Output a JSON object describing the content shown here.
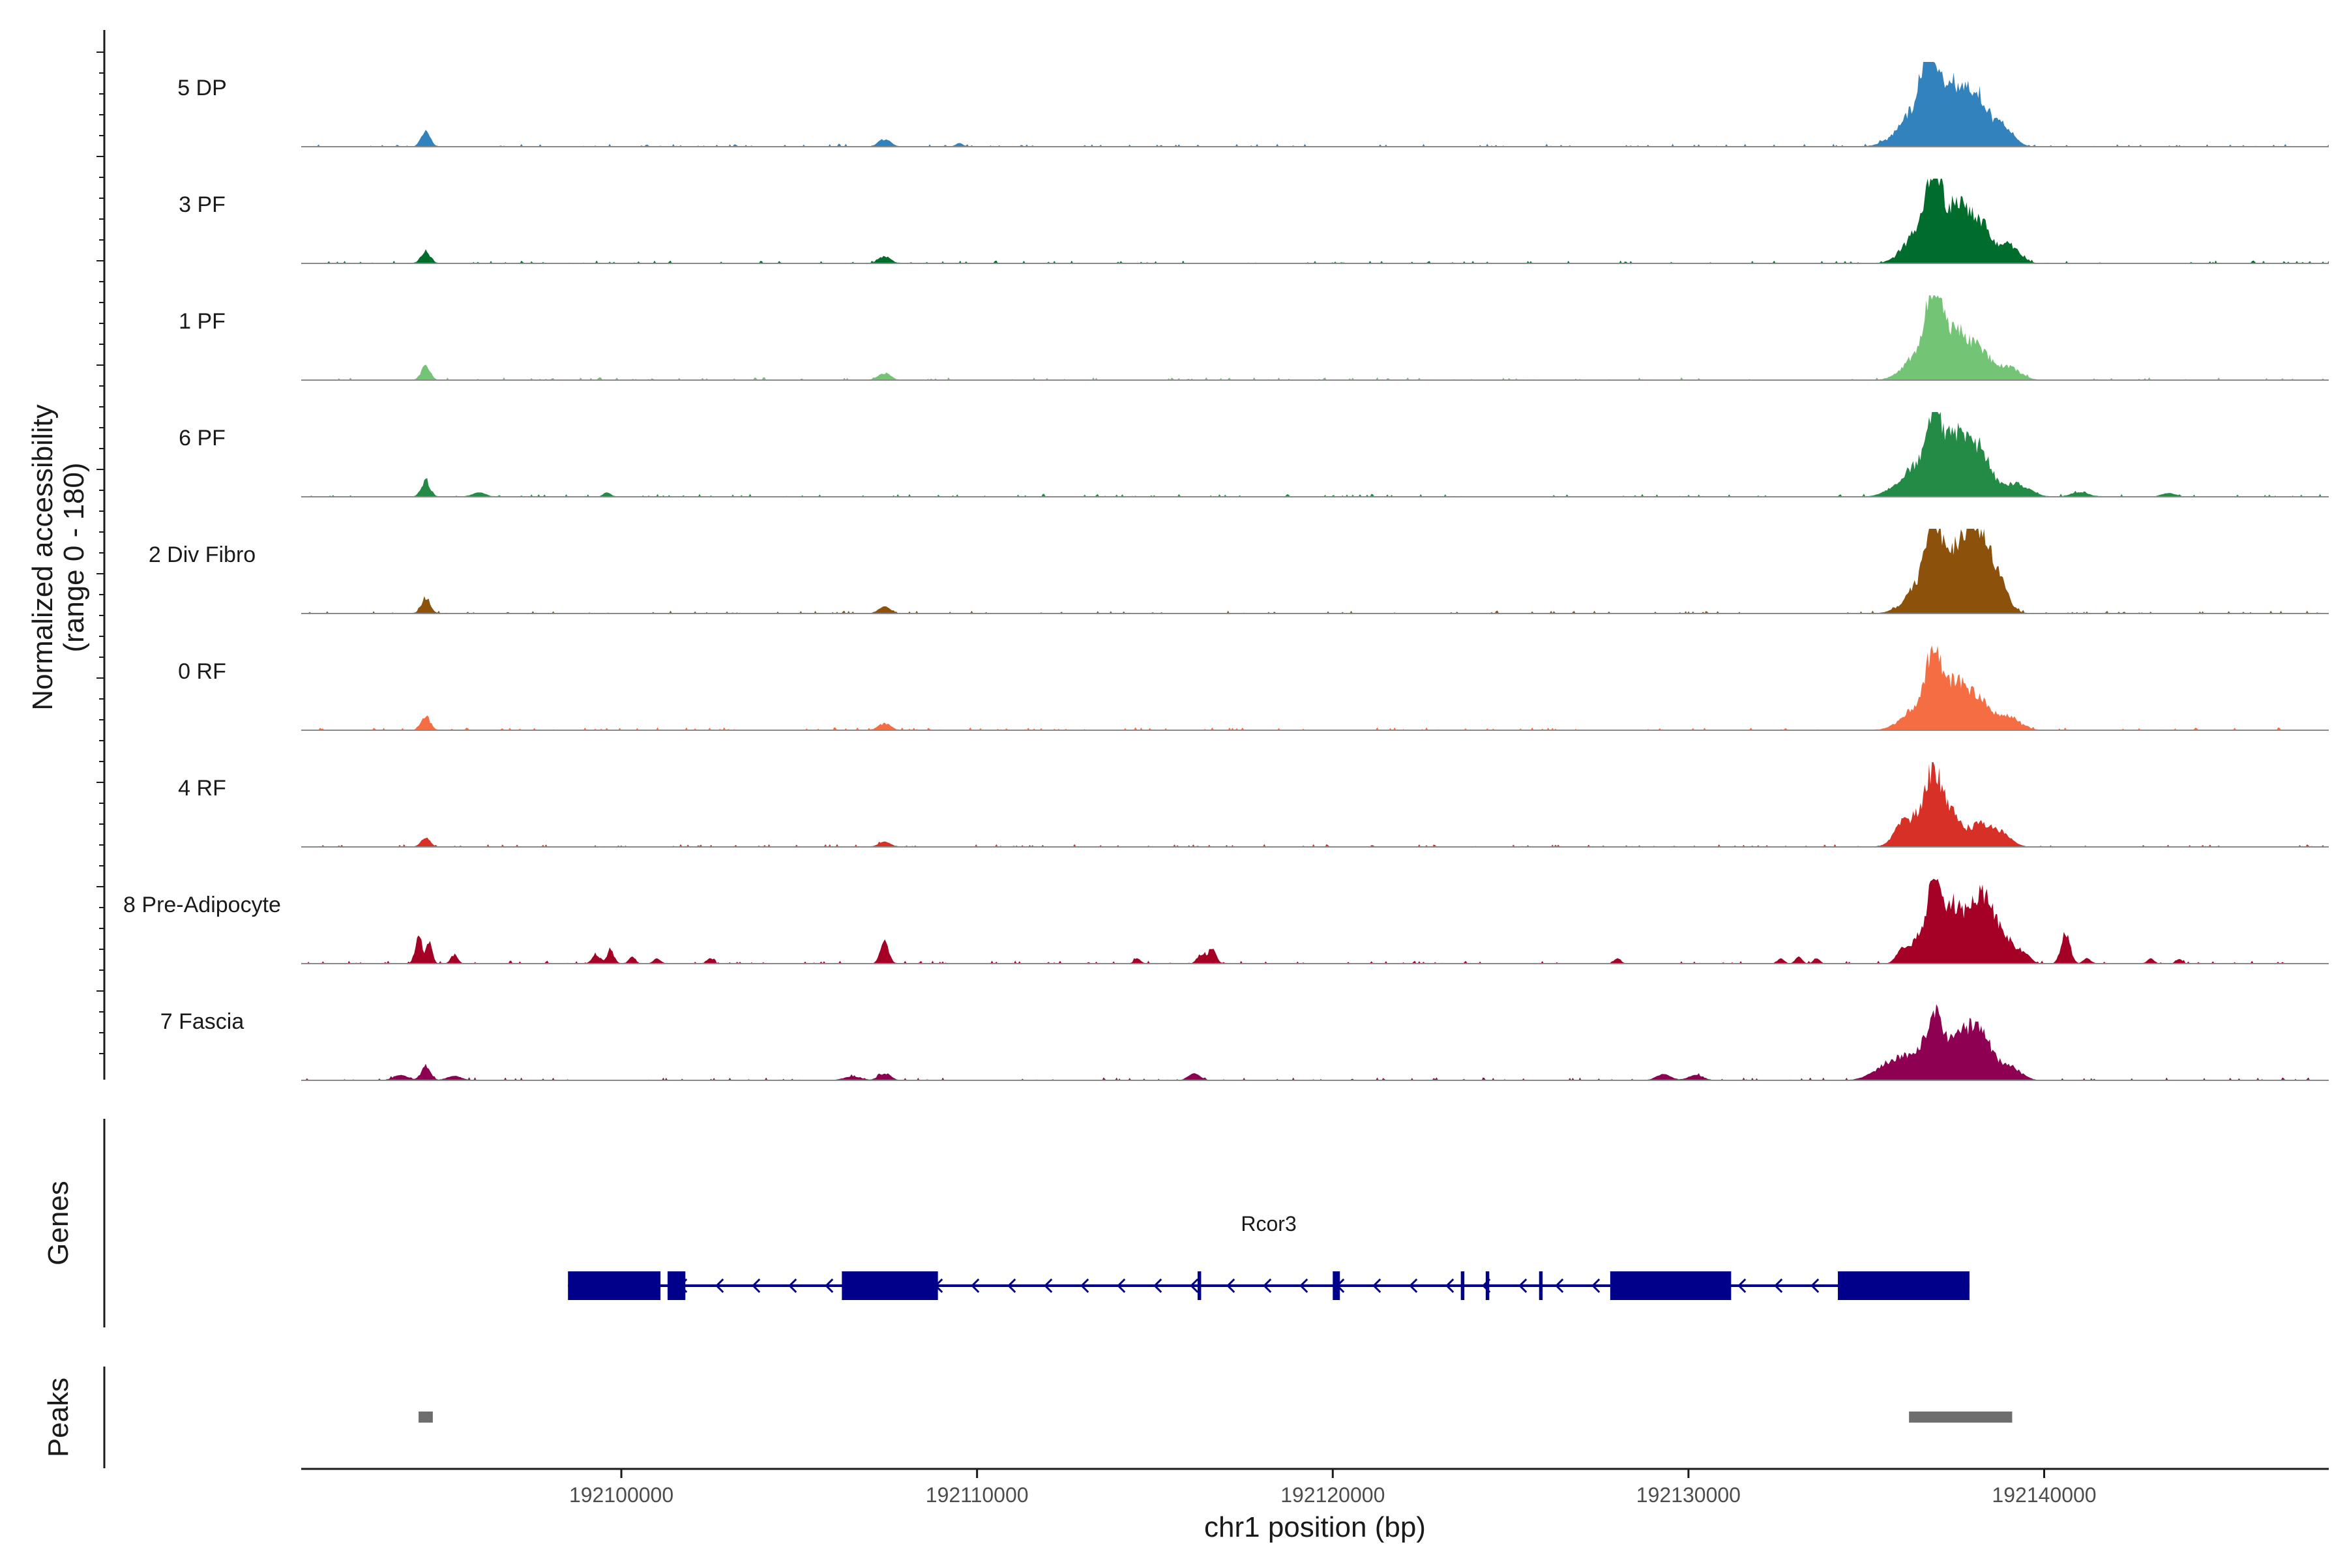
{
  "chart_data": {
    "type": "area",
    "title": "",
    "xlabel": "chr1 position (bp)",
    "ylabel": "Normalized accessibility",
    "ylabel_range": "(range 0 - 180)",
    "xlim": [
      192091000,
      192148000
    ],
    "ylim": [
      0,
      180
    ],
    "x_ticks": [
      192100000,
      192110000,
      192120000,
      192130000,
      192140000
    ],
    "x_tick_labels": [
      "192100000",
      "192110000",
      "192120000",
      "192130000",
      "192140000"
    ],
    "grid": false,
    "legend": "none",
    "series": [
      {
        "name": "5 DP",
        "color": "#3182BD",
        "peaks": [
          [
            192094500,
            0.22,
            120
          ],
          [
            192107400,
            0.1,
            160
          ],
          [
            192109500,
            0.04,
            100
          ],
          [
            192136500,
            0.55,
            500
          ],
          [
            192136800,
            0.92,
            220
          ],
          [
            192137300,
            0.55,
            260
          ],
          [
            192138200,
            0.62,
            300
          ],
          [
            192137700,
            0.48,
            260
          ],
          [
            192138900,
            0.25,
            250
          ]
        ]
      },
      {
        "name": "3 PF",
        "color": "#006D2C",
        "peaks": [
          [
            192094500,
            0.18,
            120
          ],
          [
            192107400,
            0.09,
            160
          ],
          [
            192136600,
            0.55,
            420
          ],
          [
            192136900,
            0.88,
            200
          ],
          [
            192137400,
            0.45,
            260
          ],
          [
            192138200,
            0.55,
            300
          ],
          [
            192137700,
            0.4,
            260
          ],
          [
            192139000,
            0.25,
            280
          ]
        ]
      },
      {
        "name": "1 PF",
        "color": "#74C476",
        "peaks": [
          [
            192094500,
            0.2,
            120
          ],
          [
            192107400,
            0.09,
            160
          ],
          [
            192136600,
            0.45,
            420
          ],
          [
            192136900,
            0.95,
            200
          ],
          [
            192137400,
            0.45,
            260
          ],
          [
            192138200,
            0.4,
            300
          ],
          [
            192137700,
            0.32,
            260
          ],
          [
            192139000,
            0.18,
            300
          ]
        ]
      },
      {
        "name": "6 PF",
        "color": "#238B45",
        "peaks": [
          [
            192094500,
            0.22,
            120
          ],
          [
            192096000,
            0.05,
            180
          ],
          [
            192099600,
            0.05,
            100
          ],
          [
            192136500,
            0.45,
            500
          ],
          [
            192136900,
            0.9,
            200
          ],
          [
            192137400,
            0.5,
            260
          ],
          [
            192138200,
            0.62,
            300
          ],
          [
            192137700,
            0.4,
            260
          ],
          [
            192139200,
            0.18,
            350
          ],
          [
            192141000,
            0.05,
            250
          ],
          [
            192143500,
            0.04,
            200
          ]
        ]
      },
      {
        "name": "2 Div Fibro",
        "color": "#8C510A",
        "peaks": [
          [
            192094500,
            0.22,
            120
          ],
          [
            192107400,
            0.08,
            160
          ],
          [
            192136600,
            0.45,
            420
          ],
          [
            192136900,
            0.9,
            200
          ],
          [
            192137400,
            0.55,
            280
          ],
          [
            192138200,
            0.88,
            280
          ],
          [
            192137800,
            0.6,
            260
          ],
          [
            192138700,
            0.45,
            260
          ]
        ]
      },
      {
        "name": "0 RF",
        "color": "#F46D43",
        "peaks": [
          [
            192094500,
            0.2,
            120
          ],
          [
            192107400,
            0.09,
            160
          ],
          [
            192136500,
            0.35,
            420
          ],
          [
            192136900,
            0.88,
            200
          ],
          [
            192137400,
            0.45,
            260
          ],
          [
            192138200,
            0.4,
            300
          ],
          [
            192137700,
            0.32,
            260
          ],
          [
            192139000,
            0.18,
            300
          ]
        ]
      },
      {
        "name": "4 RF",
        "color": "#D73027",
        "peaks": [
          [
            192094500,
            0.12,
            120
          ],
          [
            192107400,
            0.06,
            160
          ],
          [
            192135900,
            0.15,
            150
          ],
          [
            192136500,
            0.45,
            420
          ],
          [
            192136900,
            0.72,
            200
          ],
          [
            192137400,
            0.45,
            260
          ],
          [
            192138200,
            0.32,
            300
          ],
          [
            192138800,
            0.18,
            260
          ]
        ]
      },
      {
        "name": "8 Pre-Adipocyte",
        "color": "#A50026",
        "peaks": [
          [
            192094300,
            0.42,
            90
          ],
          [
            192094600,
            0.3,
            80
          ],
          [
            192095300,
            0.12,
            90
          ],
          [
            192099300,
            0.12,
            110
          ],
          [
            192099700,
            0.2,
            90
          ],
          [
            192100300,
            0.08,
            90
          ],
          [
            192101000,
            0.06,
            90
          ],
          [
            192102500,
            0.06,
            90
          ],
          [
            192107400,
            0.32,
            110
          ],
          [
            192114500,
            0.06,
            90
          ],
          [
            192116300,
            0.12,
            110
          ],
          [
            192116600,
            0.2,
            110
          ],
          [
            192128000,
            0.06,
            90
          ],
          [
            192132600,
            0.06,
            90
          ],
          [
            192133100,
            0.08,
            90
          ],
          [
            192133600,
            0.06,
            90
          ],
          [
            192136000,
            0.12,
            150
          ],
          [
            192136500,
            0.35,
            300
          ],
          [
            192136900,
            1.0,
            180
          ],
          [
            192137300,
            0.6,
            220
          ],
          [
            192137700,
            0.52,
            260
          ],
          [
            192138200,
            0.72,
            260
          ],
          [
            192138600,
            0.45,
            260
          ],
          [
            192139000,
            0.2,
            200
          ],
          [
            192139400,
            0.15,
            180
          ],
          [
            192140600,
            0.45,
            120
          ],
          [
            192141200,
            0.06,
            100
          ],
          [
            192143000,
            0.06,
            90
          ],
          [
            192143800,
            0.05,
            90
          ]
        ]
      },
      {
        "name": "7 Fascia",
        "color": "#8E0152",
        "peaks": [
          [
            192094500,
            0.2,
            120
          ],
          [
            192093800,
            0.06,
            200
          ],
          [
            192095300,
            0.05,
            200
          ],
          [
            192107400,
            0.09,
            160
          ],
          [
            192106500,
            0.04,
            250
          ],
          [
            192116100,
            0.08,
            160
          ],
          [
            192129300,
            0.07,
            200
          ],
          [
            192130200,
            0.06,
            200
          ],
          [
            192135600,
            0.2,
            380
          ],
          [
            192136400,
            0.35,
            420
          ],
          [
            192136900,
            0.72,
            200
          ],
          [
            192137400,
            0.42,
            260
          ],
          [
            192138200,
            0.68,
            300
          ],
          [
            192137700,
            0.35,
            260
          ],
          [
            192139000,
            0.2,
            300
          ]
        ]
      }
    ],
    "genes": {
      "label": "Genes",
      "items": [
        {
          "name": "Rcor3",
          "color": "#00008B",
          "strand": "-",
          "start": 192098500,
          "end": 192137900,
          "exons": [
            [
              192098500,
              192101100
            ],
            [
              192101300,
              192101800
            ],
            [
              192106200,
              192108900
            ],
            [
              192116200,
              192116300
            ],
            [
              192120000,
              192120200
            ],
            [
              192123600,
              192123700
            ],
            [
              192124300,
              192124400
            ],
            [
              192125800,
              192125900
            ],
            [
              192127800,
              192131200
            ],
            [
              192134200,
              192137700
            ],
            [
              192137700,
              192137900
            ]
          ]
        }
      ]
    },
    "peaks_track": {
      "label": "Peaks",
      "color": "#6E6E6E",
      "regions": [
        [
          192094300,
          192094700
        ],
        [
          192136200,
          192139100
        ]
      ]
    }
  }
}
